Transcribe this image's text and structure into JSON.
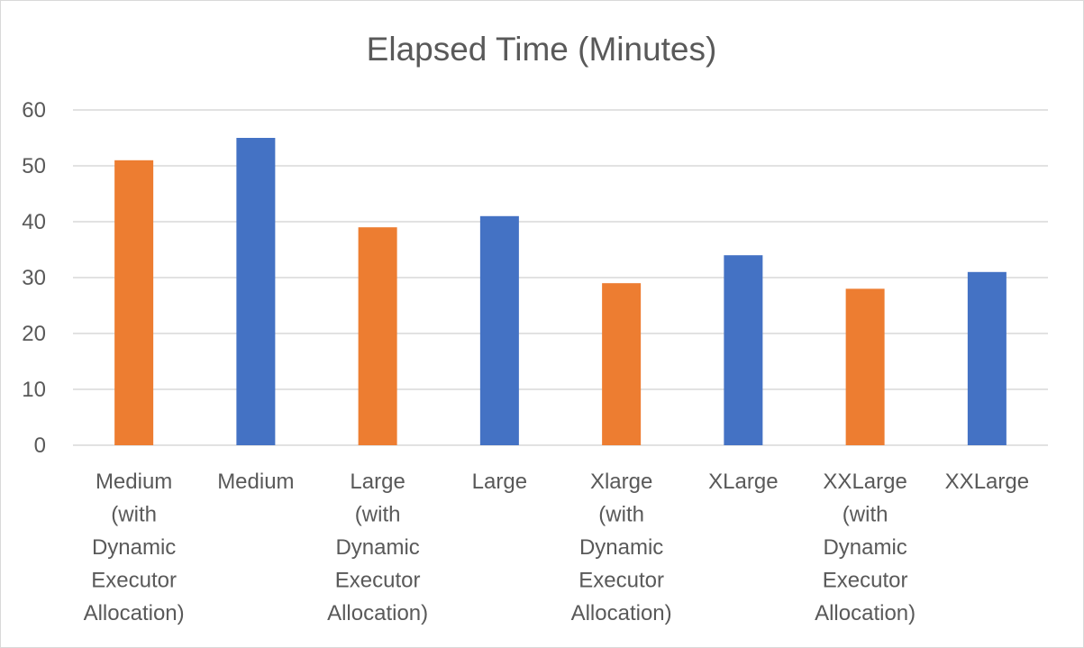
{
  "chart_data": {
    "type": "bar",
    "title": "Elapsed Time (Minutes)",
    "xlabel": "",
    "ylabel": "",
    "ylim": [
      0,
      60
    ],
    "yticks": [
      0,
      10,
      20,
      30,
      40,
      50,
      60
    ],
    "grid": true,
    "legend": "none",
    "categories": [
      "Medium (with Dynamic Executor Allocation)",
      "Medium",
      "Large (with Dynamic Executor Allocation)",
      "Large",
      "Xlarge (with Dynamic Executor Allocation)",
      "XLarge",
      "XXLarge (with Dynamic Executor Allocation)",
      "XXLarge"
    ],
    "category_lines": [
      [
        "Medium",
        "(with",
        "Dynamic",
        "Executor",
        "Allocation)"
      ],
      [
        "Medium"
      ],
      [
        "Large",
        "(with",
        "Dynamic",
        "Executor",
        "Allocation)"
      ],
      [
        "Large"
      ],
      [
        "Xlarge",
        "(with",
        "Dynamic",
        "Executor",
        "Allocation)"
      ],
      [
        "XLarge"
      ],
      [
        "XXLarge",
        "(with",
        "Dynamic",
        "Executor",
        "Allocation)"
      ],
      [
        "XXLarge"
      ]
    ],
    "values": [
      51,
      55,
      39,
      41,
      29,
      34,
      28,
      31
    ],
    "bar_colors": [
      "#ed7d31",
      "#4472c4",
      "#ed7d31",
      "#4472c4",
      "#ed7d31",
      "#4472c4",
      "#ed7d31",
      "#4472c4"
    ]
  },
  "colors": {
    "orange": "#ed7d31",
    "blue": "#4472c4",
    "gridline": "#d9d9d9",
    "text": "#595959"
  }
}
